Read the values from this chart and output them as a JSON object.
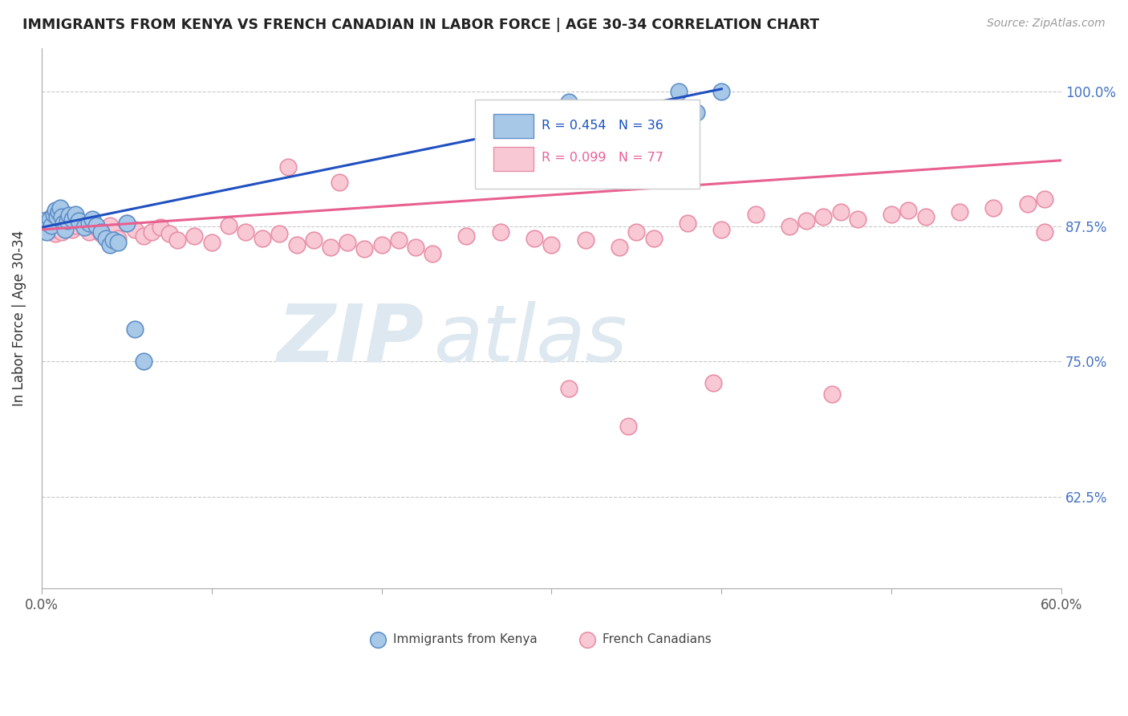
{
  "title": "IMMIGRANTS FROM KENYA VS FRENCH CANADIAN IN LABOR FORCE | AGE 30-34 CORRELATION CHART",
  "source": "Source: ZipAtlas.com",
  "ylabel": "In Labor Force | Age 30-34",
  "xlim": [
    0.0,
    0.6
  ],
  "ylim": [
    0.54,
    1.04
  ],
  "xticks": [
    0.0,
    0.1,
    0.2,
    0.3,
    0.4,
    0.5,
    0.6
  ],
  "xticklabels": [
    "0.0%",
    "",
    "",
    "",
    "",
    "",
    "60.0%"
  ],
  "yticks": [
    0.625,
    0.75,
    0.875,
    1.0
  ],
  "yticklabels": [
    "62.5%",
    "75.0%",
    "87.5%",
    "100.0%"
  ],
  "kenya_R": 0.454,
  "kenya_N": 36,
  "french_R": 0.099,
  "french_N": 77,
  "kenya_color": "#a8c8e8",
  "french_color": "#f8c8d4",
  "kenya_edge_color": "#6090c8",
  "french_edge_color": "#e890a8",
  "kenya_trend_color": "#2050c0",
  "french_trend_color": "#e86090",
  "background_color": "#ffffff",
  "kenya_trend_x": [
    0.0,
    0.4
  ],
  "kenya_trend_y": [
    0.874,
    1.002
  ],
  "french_trend_x": [
    0.0,
    0.6
  ],
  "french_trend_y": [
    0.872,
    0.936
  ],
  "kenya_x": [
    0.001,
    0.002,
    0.003,
    0.004,
    0.005,
    0.006,
    0.007,
    0.008,
    0.009,
    0.01,
    0.011,
    0.012,
    0.013,
    0.014,
    0.015,
    0.016,
    0.018,
    0.02,
    0.022,
    0.025,
    0.028,
    0.03,
    0.032,
    0.035,
    0.038,
    0.04,
    0.042,
    0.045,
    0.05,
    0.055,
    0.06,
    0.29,
    0.31,
    0.375,
    0.385,
    0.4
  ],
  "kenya_y": [
    0.88,
    0.875,
    0.87,
    0.878,
    0.882,
    0.876,
    0.886,
    0.89,
    0.884,
    0.888,
    0.892,
    0.884,
    0.878,
    0.872,
    0.88,
    0.885,
    0.882,
    0.886,
    0.88,
    0.874,
    0.878,
    0.882,
    0.876,
    0.87,
    0.864,
    0.858,
    0.862,
    0.86,
    0.878,
    0.78,
    0.75,
    0.972,
    0.99,
    1.0,
    0.98,
    1.0
  ],
  "french_x": [
    0.001,
    0.002,
    0.003,
    0.004,
    0.005,
    0.006,
    0.007,
    0.008,
    0.009,
    0.01,
    0.012,
    0.014,
    0.016,
    0.018,
    0.02,
    0.022,
    0.025,
    0.028,
    0.03,
    0.032,
    0.035,
    0.038,
    0.04,
    0.042,
    0.045,
    0.05,
    0.055,
    0.06,
    0.065,
    0.07,
    0.075,
    0.08,
    0.09,
    0.1,
    0.11,
    0.12,
    0.13,
    0.14,
    0.15,
    0.16,
    0.17,
    0.18,
    0.19,
    0.2,
    0.21,
    0.22,
    0.23,
    0.25,
    0.27,
    0.29,
    0.3,
    0.32,
    0.34,
    0.35,
    0.36,
    0.38,
    0.4,
    0.42,
    0.45,
    0.46,
    0.47,
    0.48,
    0.5,
    0.51,
    0.52,
    0.54,
    0.56,
    0.58,
    0.59,
    0.145,
    0.175,
    0.31,
    0.345,
    0.395,
    0.44,
    0.465,
    0.59
  ],
  "french_y": [
    0.88,
    0.878,
    0.875,
    0.882,
    0.876,
    0.87,
    0.875,
    0.868,
    0.872,
    0.876,
    0.87,
    0.874,
    0.878,
    0.872,
    0.876,
    0.88,
    0.875,
    0.87,
    0.878,
    0.874,
    0.868,
    0.872,
    0.876,
    0.87,
    0.864,
    0.878,
    0.872,
    0.866,
    0.87,
    0.874,
    0.868,
    0.862,
    0.866,
    0.86,
    0.876,
    0.87,
    0.864,
    0.868,
    0.858,
    0.862,
    0.856,
    0.86,
    0.854,
    0.858,
    0.862,
    0.856,
    0.85,
    0.866,
    0.87,
    0.864,
    0.858,
    0.862,
    0.856,
    0.87,
    0.864,
    0.878,
    0.872,
    0.886,
    0.88,
    0.884,
    0.888,
    0.882,
    0.886,
    0.89,
    0.884,
    0.888,
    0.892,
    0.896,
    0.9,
    0.93,
    0.916,
    0.725,
    0.69,
    0.73,
    0.875,
    0.72,
    0.87
  ]
}
